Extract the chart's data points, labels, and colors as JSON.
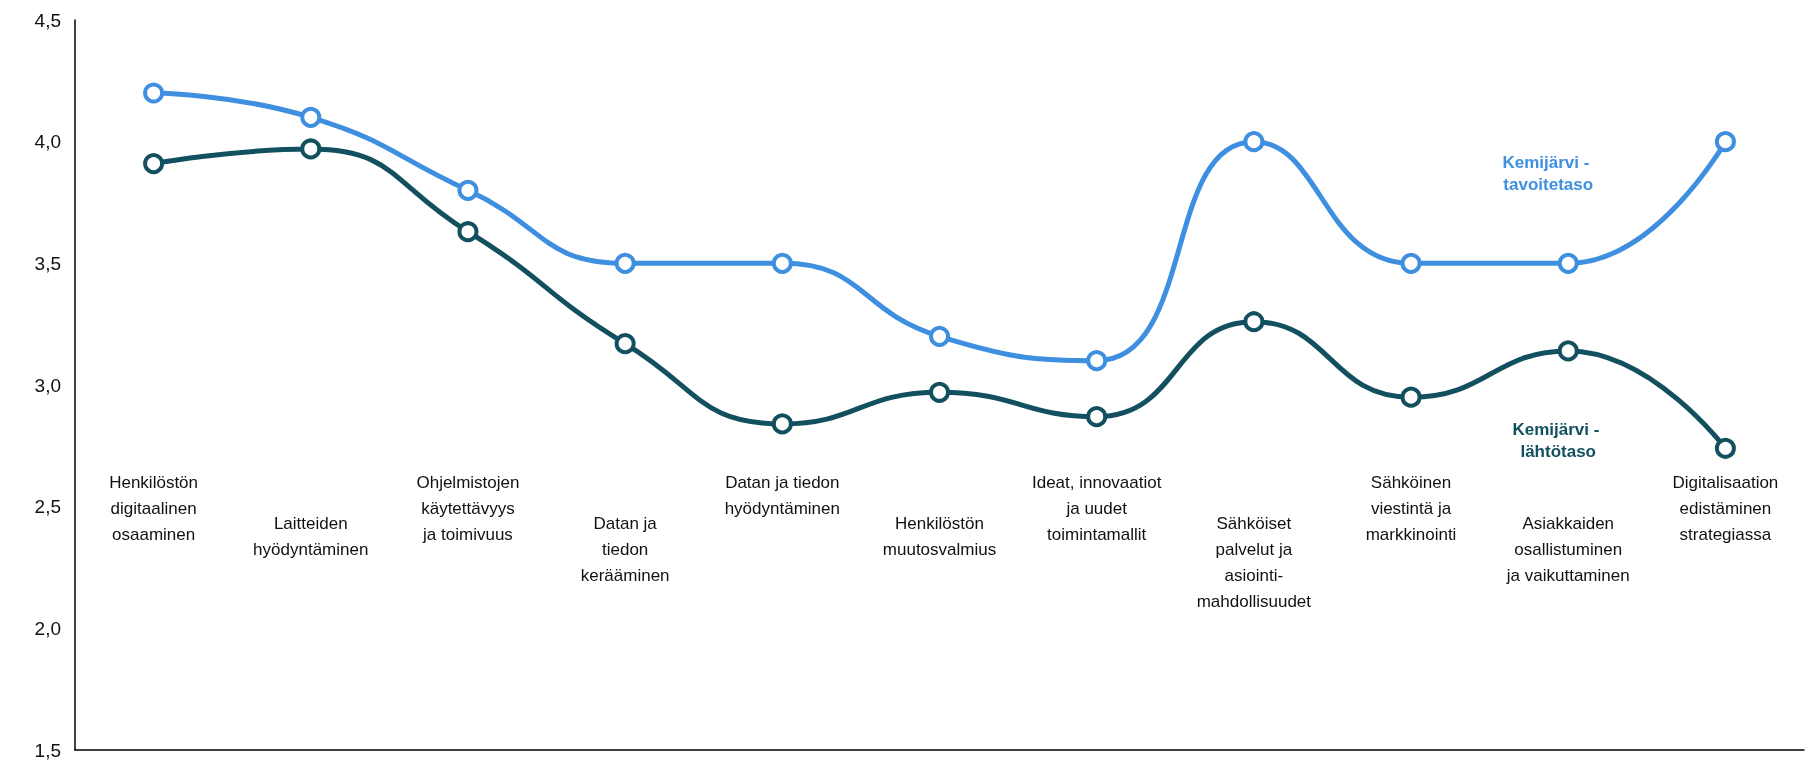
{
  "chart_data": {
    "type": "line",
    "categories": [
      "Henkilöstön\ndigitaalinen\nosaaminen",
      "Laitteiden\nhyödyntäminen",
      "Ohjelmistojen\nkäytettävyys\nja toimivuus",
      "Datan ja\ntiedon\nkerääminen",
      "Datan ja tiedon\nhyödyntäminen",
      "Henkilöstön\nmuutosvalmius",
      "Ideat, innovaatiot\nja uudet\ntoimintamallit",
      "Sähköiset\npalvelut ja\nasiointi-\nmahdollisuudet",
      "Sähköinen\nviestintä ja\nmarkkinointi",
      "Asiakkaiden\nosallistuminen\nja vaikuttaminen",
      "Digitalisaation\nedistäminen\nstrategiassa"
    ],
    "series": [
      {
        "name": "Kemijärvi - tavoitetaso",
        "color": "#3f8fe0",
        "values": [
          4.2,
          4.1,
          3.8,
          3.5,
          3.5,
          3.2,
          3.1,
          4.0,
          3.5,
          3.5,
          4.0
        ]
      },
      {
        "name": "Kemijärvi - lähtötaso",
        "color": "#13505f",
        "values": [
          3.91,
          3.97,
          3.63,
          3.17,
          2.84,
          2.97,
          2.87,
          3.26,
          2.95,
          3.14,
          2.74
        ]
      }
    ],
    "ylim": [
      1.5,
      4.5
    ],
    "yticks": [
      {
        "value": 1.5,
        "label": "1,5"
      },
      {
        "value": 2.0,
        "label": "2,0"
      },
      {
        "value": 2.5,
        "label": "2,5"
      },
      {
        "value": 3.0,
        "label": "3,0"
      },
      {
        "value": 3.5,
        "label": "3,5"
      },
      {
        "value": 4.0,
        "label": "4,0"
      },
      {
        "value": 4.5,
        "label": "4,5"
      }
    ],
    "grid": false,
    "marker": "circle",
    "line_style": "solid"
  }
}
